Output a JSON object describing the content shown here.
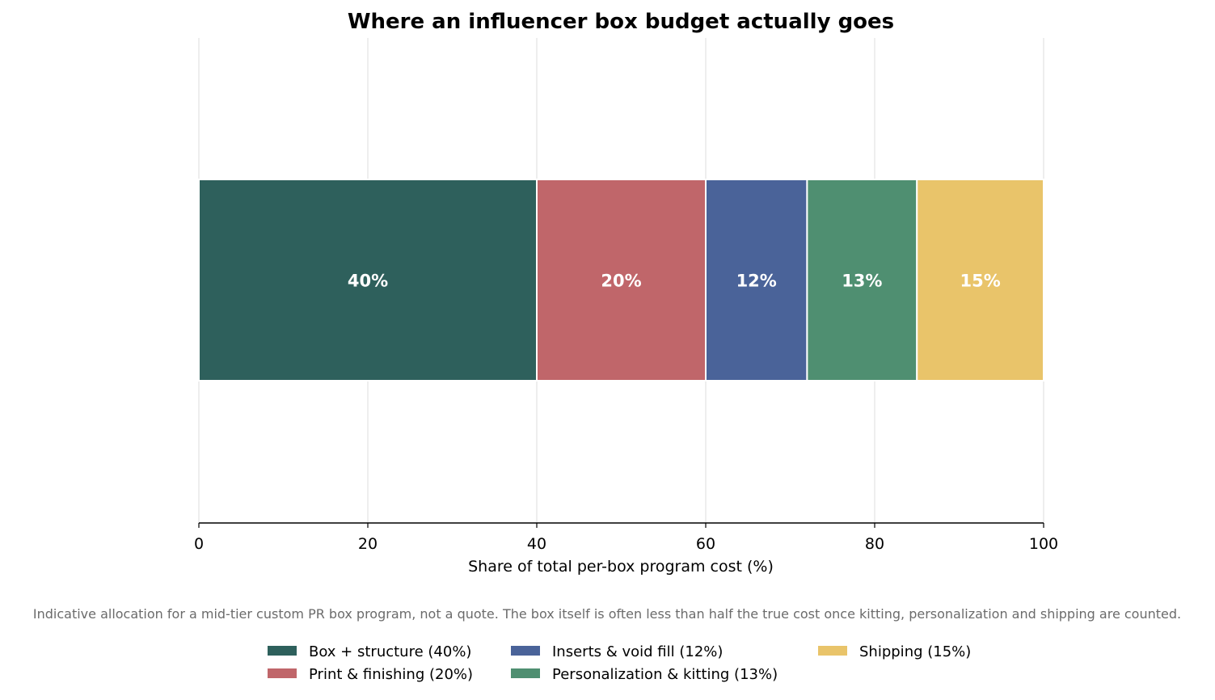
{
  "chart_data": {
    "type": "bar",
    "orientation": "horizontal",
    "stacked": true,
    "title": "Where an influencer box budget actually goes",
    "xlabel": "Share of total per-box program cost (%)",
    "ylabel": "",
    "xlim": [
      0,
      100
    ],
    "xticks": [
      "0",
      "20",
      "40",
      "60",
      "80",
      "100"
    ],
    "grid": true,
    "legend_position": "bottom",
    "note": "Indicative allocation for a mid-tier custom PR box program, not a quote. The box itself is often less than half the true cost once kitting, personalization and shipping are counted.",
    "series": [
      {
        "name": "Box + structure (40%)",
        "value": 40,
        "label": "40%",
        "color": "#2e605c"
      },
      {
        "name": "Print & finishing (20%)",
        "value": 20,
        "label": "20%",
        "color": "#c0666a"
      },
      {
        "name": "Inserts & void fill (12%)",
        "value": 12,
        "label": "12%",
        "color": "#4a6399"
      },
      {
        "name": "Personalization & kitting (13%)",
        "value": 13,
        "label": "13%",
        "color": "#4f8f71"
      },
      {
        "name": "Shipping (15%)",
        "value": 15,
        "label": "15%",
        "color": "#e9c46a"
      }
    ]
  }
}
